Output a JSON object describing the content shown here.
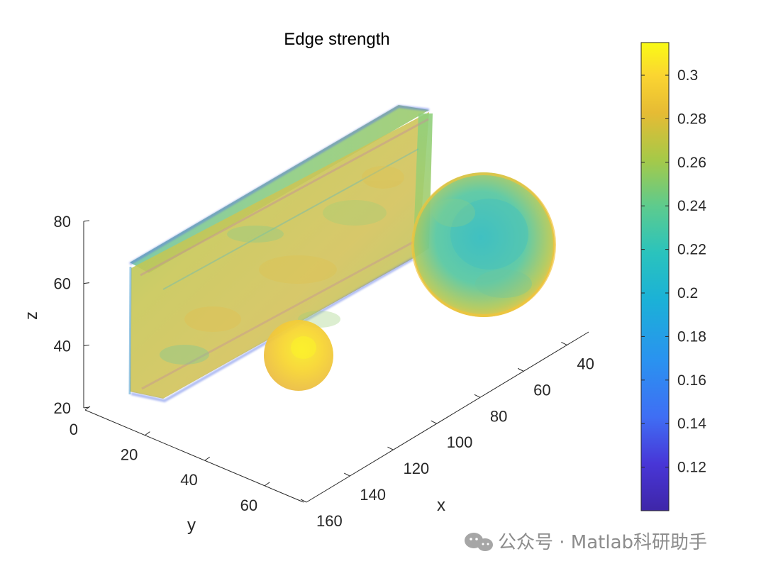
{
  "chart_data": {
    "type": "3d-isosurface",
    "title": "Edge strength",
    "xlabel": "x",
    "ylabel": "y",
    "zlabel": "z",
    "x_ticks": [
      "40",
      "60",
      "80",
      "100",
      "120",
      "140",
      "160"
    ],
    "y_ticks": [
      "0",
      "20",
      "40",
      "60"
    ],
    "z_ticks": [
      "20",
      "40",
      "60",
      "80"
    ],
    "xlim": [
      40,
      160
    ],
    "ylim": [
      0,
      60
    ],
    "zlim": [
      20,
      80
    ],
    "colorbar": {
      "colormap": "parula",
      "range": [
        0.1,
        0.315
      ],
      "ticks": [
        "0.12",
        "0.14",
        "0.16",
        "0.18",
        "0.2",
        "0.22",
        "0.24",
        "0.26",
        "0.28",
        "0.3"
      ]
    },
    "objects": [
      {
        "shape": "slab",
        "edge_strength_range": [
          0.18,
          0.27
        ]
      },
      {
        "shape": "large-sphere",
        "edge_strength_range": [
          0.21,
          0.28
        ]
      },
      {
        "shape": "small-sphere",
        "edge_strength_range": [
          0.27,
          0.31
        ]
      }
    ],
    "colors": {
      "parula_low": "#3e26a8",
      "parula_mid": "#22c4d4",
      "parula_high": "#f9fb15"
    }
  },
  "watermark": {
    "text": "公众号 · Matlab科研助手",
    "icon": "wechat-icon"
  }
}
